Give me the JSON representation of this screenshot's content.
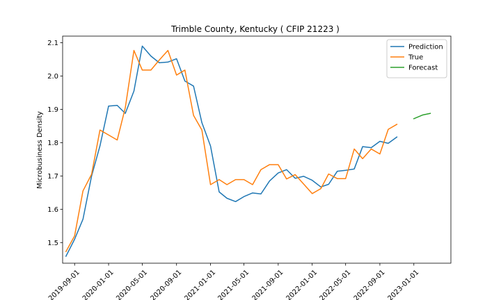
{
  "chart_data": {
    "type": "line",
    "title": "Trimble County, Kentucky ( CFIP 21223 )",
    "xlabel": "",
    "ylabel": "Microbusiness Density",
    "ylim": [
      1.438,
      2.12
    ],
    "xlim": [
      "2019-07-20",
      "2023-05-14"
    ],
    "x_ticks": [
      "2019-09-01",
      "2020-01-01",
      "2020-05-01",
      "2020-09-01",
      "2021-01-01",
      "2021-05-01",
      "2021-09-01",
      "2022-01-01",
      "2022-05-01",
      "2022-09-01",
      "2023-01-01"
    ],
    "y_ticks": [
      "1.5",
      "1.6",
      "1.7",
      "1.8",
      "1.9",
      "2.0",
      "2.1"
    ],
    "grid": false,
    "legend_position": "top-right",
    "series": [
      {
        "name": "Prediction",
        "color": "#1f77b4",
        "points": [
          [
            "2019-08-01",
            1.459
          ],
          [
            "2019-09-01",
            1.51
          ],
          [
            "2019-10-01",
            1.57
          ],
          [
            "2019-11-01",
            1.7
          ],
          [
            "2019-12-01",
            1.79
          ],
          [
            "2020-01-01",
            1.91
          ],
          [
            "2020-02-01",
            1.912
          ],
          [
            "2020-03-01",
            1.888
          ],
          [
            "2020-04-01",
            1.955
          ],
          [
            "2020-05-01",
            2.09
          ],
          [
            "2020-06-01",
            2.06
          ],
          [
            "2020-07-01",
            2.04
          ],
          [
            "2020-08-01",
            2.042
          ],
          [
            "2020-09-01",
            2.052
          ],
          [
            "2020-10-01",
            1.985
          ],
          [
            "2020-11-01",
            1.97
          ],
          [
            "2020-12-01",
            1.86
          ],
          [
            "2021-01-01",
            1.79
          ],
          [
            "2021-02-01",
            1.652
          ],
          [
            "2021-03-01",
            1.633
          ],
          [
            "2021-04-01",
            1.623
          ],
          [
            "2021-05-01",
            1.638
          ],
          [
            "2021-06-01",
            1.649
          ],
          [
            "2021-07-01",
            1.646
          ],
          [
            "2021-08-01",
            1.685
          ],
          [
            "2021-09-01",
            1.709
          ],
          [
            "2021-10-01",
            1.719
          ],
          [
            "2021-11-01",
            1.693
          ],
          [
            "2021-12-01",
            1.699
          ],
          [
            "2022-01-01",
            1.687
          ],
          [
            "2022-02-01",
            1.667
          ],
          [
            "2022-03-01",
            1.675
          ],
          [
            "2022-04-01",
            1.714
          ],
          [
            "2022-05-01",
            1.717
          ],
          [
            "2022-06-01",
            1.721
          ],
          [
            "2022-07-01",
            1.788
          ],
          [
            "2022-08-01",
            1.785
          ],
          [
            "2022-09-01",
            1.804
          ],
          [
            "2022-10-01",
            1.798
          ],
          [
            "2022-11-01",
            1.817
          ]
        ]
      },
      {
        "name": "True",
        "color": "#ff7f0e",
        "points": [
          [
            "2019-08-01",
            1.473
          ],
          [
            "2019-09-01",
            1.52
          ],
          [
            "2019-10-01",
            1.655
          ],
          [
            "2019-11-01",
            1.705
          ],
          [
            "2019-12-01",
            1.838
          ],
          [
            "2020-01-01",
            1.823
          ],
          [
            "2020-02-01",
            1.808
          ],
          [
            "2020-03-01",
            1.905
          ],
          [
            "2020-04-01",
            2.077
          ],
          [
            "2020-05-01",
            2.018
          ],
          [
            "2020-06-01",
            2.018
          ],
          [
            "2020-07-01",
            2.048
          ],
          [
            "2020-08-01",
            2.077
          ],
          [
            "2020-09-01",
            2.003
          ],
          [
            "2020-10-01",
            2.018
          ],
          [
            "2020-11-01",
            1.882
          ],
          [
            "2020-12-01",
            1.838
          ],
          [
            "2021-01-01",
            1.674
          ],
          [
            "2021-02-01",
            1.689
          ],
          [
            "2021-03-01",
            1.674
          ],
          [
            "2021-04-01",
            1.689
          ],
          [
            "2021-05-01",
            1.689
          ],
          [
            "2021-06-01",
            1.674
          ],
          [
            "2021-07-01",
            1.719
          ],
          [
            "2021-08-01",
            1.734
          ],
          [
            "2021-09-01",
            1.734
          ],
          [
            "2021-10-01",
            1.691
          ],
          [
            "2021-11-01",
            1.704
          ],
          [
            "2021-12-01",
            1.676
          ],
          [
            "2022-01-01",
            1.647
          ],
          [
            "2022-02-01",
            1.662
          ],
          [
            "2022-03-01",
            1.706
          ],
          [
            "2022-04-01",
            1.692
          ],
          [
            "2022-05-01",
            1.692
          ],
          [
            "2022-06-01",
            1.781
          ],
          [
            "2022-07-01",
            1.752
          ],
          [
            "2022-08-01",
            1.781
          ],
          [
            "2022-09-01",
            1.766
          ],
          [
            "2022-10-01",
            1.84
          ],
          [
            "2022-11-01",
            1.855
          ]
        ]
      },
      {
        "name": "Forecast",
        "color": "#2ca02c",
        "points": [
          [
            "2023-01-01",
            1.872
          ],
          [
            "2023-02-01",
            1.883
          ],
          [
            "2023-03-01",
            1.888
          ]
        ]
      }
    ]
  }
}
